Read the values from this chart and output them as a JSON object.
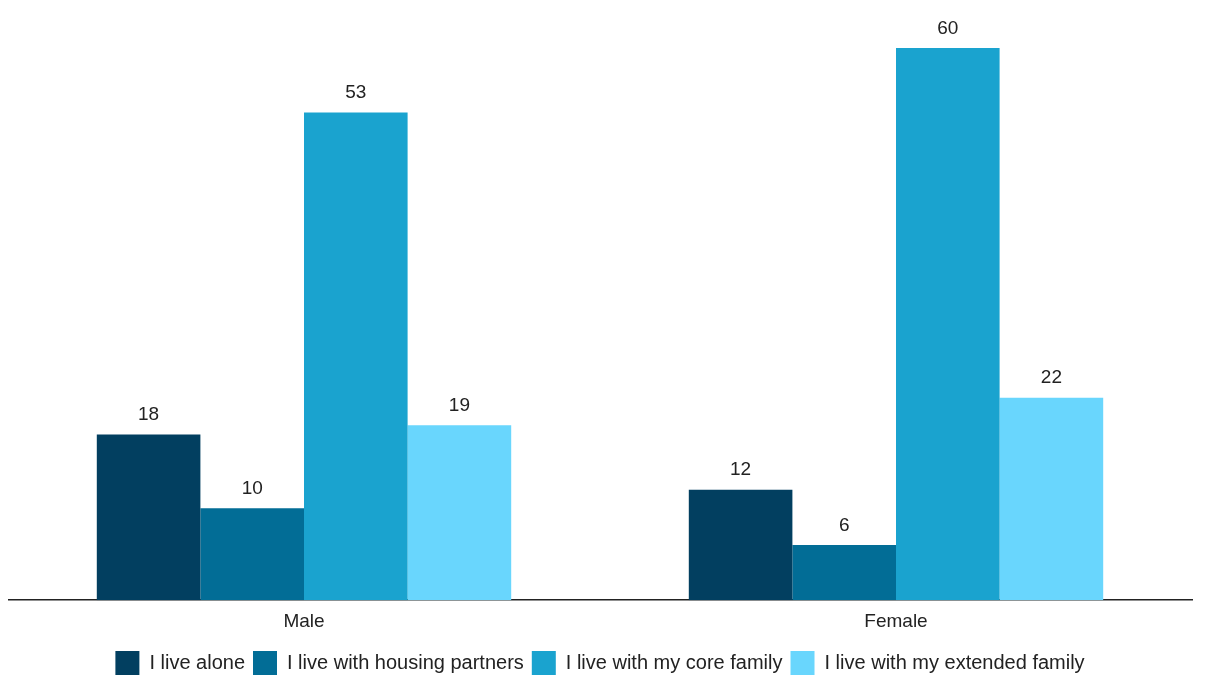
{
  "chart_data": {
    "type": "bar",
    "categories": [
      "Male",
      "Female"
    ],
    "series": [
      {
        "name": "I live alone",
        "color": "#023f60",
        "values": [
          18,
          12
        ]
      },
      {
        "name": "I live with housing partners",
        "color": "#026d96",
        "values": [
          10,
          6
        ]
      },
      {
        "name": "I live with my core family",
        "color": "#1aa3cf",
        "values": [
          53,
          60
        ]
      },
      {
        "name": "I live with my extended family",
        "color": "#69d6fd",
        "values": [
          19,
          22
        ]
      }
    ],
    "data_labels": true,
    "grid": false,
    "legend": "bottom"
  }
}
